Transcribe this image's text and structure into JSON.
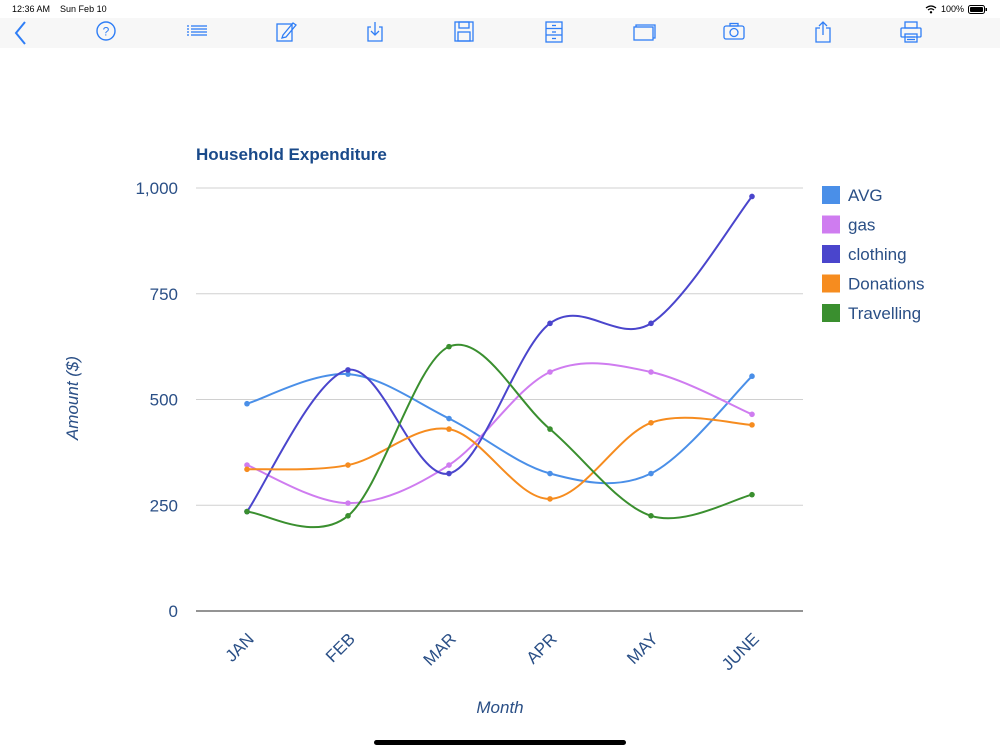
{
  "status": {
    "time": "12:36 AM",
    "date": "Sun Feb 10",
    "battery": "100%"
  },
  "toolbar": {
    "icons": [
      "back-icon",
      "help-icon",
      "list-icon",
      "edit-icon",
      "download-icon",
      "save-icon",
      "cabinet-icon",
      "windows-icon",
      "camera-icon",
      "share-icon",
      "print-icon"
    ]
  },
  "colors": {
    "accent": "#2f7ef6",
    "title": "#1a4a8a",
    "axis_text": "#2a4f86"
  },
  "chart_data": {
    "type": "line",
    "title": "Household Expenditure",
    "xlabel": "Month",
    "ylabel": "Amount ($)",
    "categories": [
      "JAN",
      "FEB",
      "MAR",
      "APR",
      "MAY",
      "JUNE"
    ],
    "ylim": [
      0,
      1000
    ],
    "yticks": [
      "0",
      "250",
      "500",
      "750",
      "1,000"
    ],
    "grid": true,
    "legend_position": "right",
    "series": [
      {
        "name": "AVG",
        "color": "#4a8fe8",
        "values": [
          490,
          560,
          455,
          325,
          325,
          555
        ]
      },
      {
        "name": "gas",
        "color": "#cf7cf0",
        "values": [
          345,
          255,
          345,
          565,
          565,
          465
        ]
      },
      {
        "name": "clothing",
        "color": "#4a45cc",
        "values": [
          235,
          570,
          325,
          680,
          680,
          980
        ]
      },
      {
        "name": "Donations",
        "color": "#f68c1f",
        "values": [
          335,
          345,
          430,
          265,
          445,
          440
        ]
      },
      {
        "name": "Travelling",
        "color": "#3a8f2f",
        "values": [
          235,
          225,
          625,
          430,
          225,
          275
        ]
      }
    ]
  }
}
